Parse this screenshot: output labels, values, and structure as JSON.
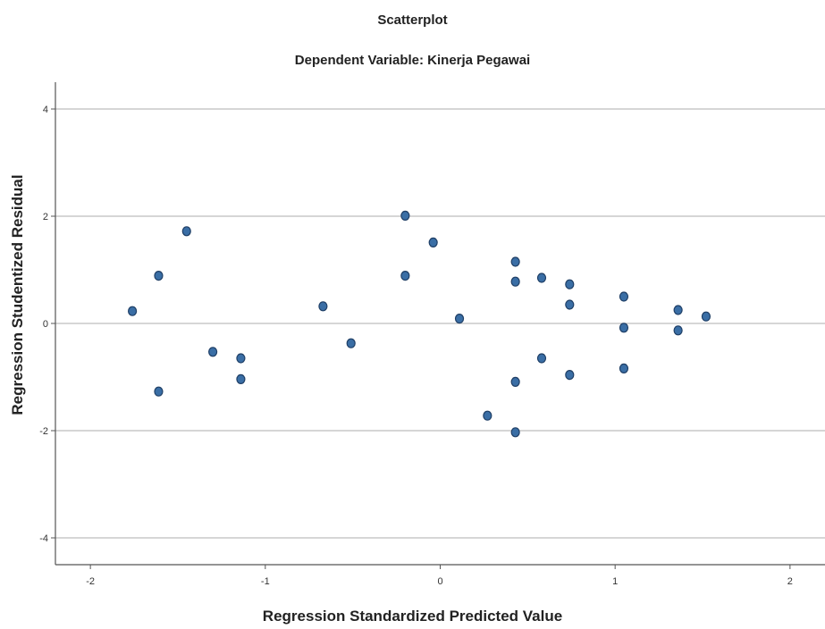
{
  "chart_data": {
    "type": "scatter",
    "title": "Scatterplot",
    "subtitle": "Dependent Variable: Kinerja Pegawai",
    "xlabel": "Regression Standardized Predicted Value",
    "ylabel": "Regression Studentized Residual",
    "xlim": [
      -2.2,
      2.2
    ],
    "ylim": [
      -4.5,
      4.5
    ],
    "xticks": [
      "-2",
      "-1",
      "0",
      "1",
      "2"
    ],
    "yticks": [
      "4",
      "2",
      "0",
      "-2",
      "-4"
    ],
    "grid": "horizontal",
    "legend": "none",
    "marker_color": "#3a6ea5",
    "marker_edge_color": "#1f3f66",
    "points": [
      {
        "x": -1.76,
        "y": 0.23
      },
      {
        "x": -1.61,
        "y": 0.89
      },
      {
        "x": -1.61,
        "y": -1.27
      },
      {
        "x": -1.45,
        "y": 1.72
      },
      {
        "x": -1.3,
        "y": -0.53
      },
      {
        "x": -1.14,
        "y": -0.65
      },
      {
        "x": -1.14,
        "y": -1.04
      },
      {
        "x": -0.67,
        "y": 0.32
      },
      {
        "x": -0.51,
        "y": -0.37
      },
      {
        "x": -0.2,
        "y": 2.01
      },
      {
        "x": -0.2,
        "y": 0.89
      },
      {
        "x": -0.04,
        "y": 1.51
      },
      {
        "x": 0.11,
        "y": 0.09
      },
      {
        "x": 0.27,
        "y": -1.72
      },
      {
        "x": 0.43,
        "y": 1.15
      },
      {
        "x": 0.43,
        "y": 0.78
      },
      {
        "x": 0.43,
        "y": -1.09
      },
      {
        "x": 0.43,
        "y": -2.03
      },
      {
        "x": 0.58,
        "y": 0.85
      },
      {
        "x": 0.58,
        "y": -0.65
      },
      {
        "x": 0.74,
        "y": 0.73
      },
      {
        "x": 0.74,
        "y": 0.35
      },
      {
        "x": 0.74,
        "y": -0.96
      },
      {
        "x": 1.05,
        "y": 0.5
      },
      {
        "x": 1.05,
        "y": -0.08
      },
      {
        "x": 1.05,
        "y": -0.84
      },
      {
        "x": 1.36,
        "y": 0.25
      },
      {
        "x": 1.36,
        "y": -0.13
      },
      {
        "x": 1.52,
        "y": 0.13
      }
    ]
  }
}
